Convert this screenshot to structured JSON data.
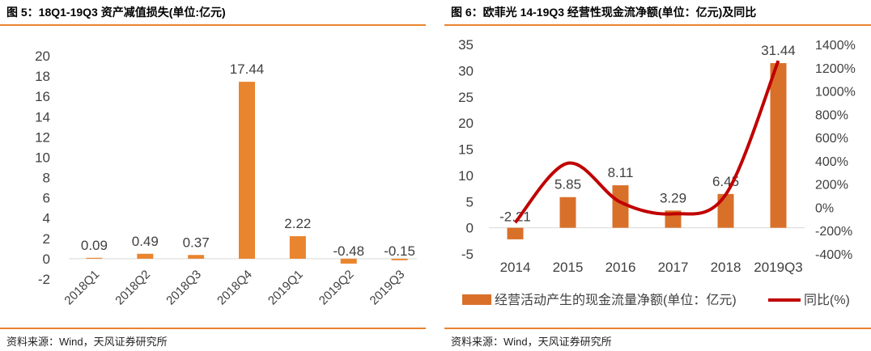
{
  "colors": {
    "bar": "#e9842f",
    "bar_right": "#d9702a",
    "line": "#c00000",
    "rule": "#e9842f"
  },
  "left_panel": {
    "title": "图 5：18Q1-19Q3 资产减值损失(单位:亿元)",
    "source": "资料来源：Wind，天风证券研究所"
  },
  "right_panel": {
    "title": "图 6：欧菲光 14-19Q3 经营性现金流净额(单位：亿元)及同比",
    "source": "资料来源：Wind，天风证券研究所"
  },
  "chart_data": [
    {
      "type": "bar",
      "categories": [
        "2018Q1",
        "2018Q2",
        "2018Q3",
        "2018Q4",
        "2019Q1",
        "2019Q2",
        "2019Q3"
      ],
      "values": [
        0.09,
        0.49,
        0.37,
        17.44,
        2.22,
        -0.48,
        -0.15
      ],
      "data_labels": [
        "0.09",
        "0.49",
        "0.37",
        "17.44",
        "2.22",
        "-0.48",
        "-0.15"
      ],
      "yticks": [
        "-2",
        "0",
        "2",
        "4",
        "6",
        "8",
        "10",
        "12",
        "14",
        "16",
        "18",
        "20"
      ],
      "ylim": [
        -2,
        20
      ],
      "x_tick_rotation": "-45deg",
      "grid": false
    },
    {
      "type": "bar+line",
      "categories": [
        "2014",
        "2015",
        "2016",
        "2017",
        "2018",
        "2019Q3"
      ],
      "series": [
        {
          "name": "经营活动产生的现金流量净额(单位：亿元)",
          "type": "bar",
          "axis": "left",
          "values": [
            -2.21,
            5.85,
            8.11,
            3.29,
            6.45,
            31.44
          ],
          "data_labels": [
            "-2.21",
            "5.85",
            "8.11",
            "3.29",
            "6.45",
            "31.44"
          ]
        },
        {
          "name": "同比(%)",
          "type": "line",
          "axis": "right",
          "values": [
            -130,
            380,
            45,
            -55,
            110,
            1260
          ]
        }
      ],
      "yticks_left": [
        "-5",
        "0",
        "5",
        "10",
        "15",
        "20",
        "25",
        "30",
        "35"
      ],
      "ylim_left": [
        -5,
        35
      ],
      "yticks_right": [
        "-400%",
        "-200%",
        "0%",
        "200%",
        "400%",
        "600%",
        "800%",
        "1000%",
        "1200%",
        "1400%"
      ],
      "ylim_right": [
        -400,
        1400
      ],
      "legend": "bottom",
      "grid": false
    }
  ]
}
